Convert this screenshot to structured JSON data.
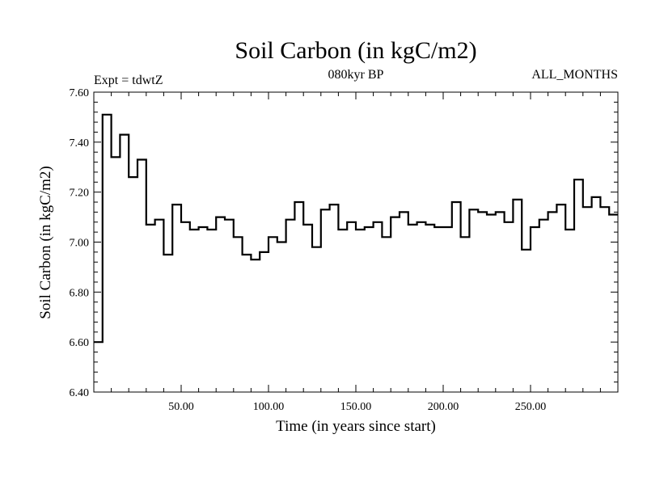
{
  "chart_data": {
    "type": "line",
    "style": "step",
    "title": "Soil Carbon (in kgC/m2)",
    "subtitle": "080kyr BP",
    "left_note": "Expt = tdwtZ",
    "right_note": "ALL_MONTHS",
    "xlabel": "Time (in years since start)",
    "ylabel": "Soil Carbon (in kgC/m2)",
    "xlim": [
      0,
      300
    ],
    "ylim": [
      6.4,
      7.6
    ],
    "x_ticks": [
      50,
      100,
      150,
      200,
      250
    ],
    "x_tick_labels": [
      "50.00",
      "100.00",
      "150.00",
      "200.00",
      "250.00"
    ],
    "y_ticks": [
      6.4,
      6.6,
      6.8,
      7.0,
      7.2,
      7.4,
      7.6
    ],
    "y_tick_labels": [
      "6.40",
      "6.60",
      "6.80",
      "7.00",
      "7.20",
      "7.40",
      "7.60"
    ],
    "series": [
      {
        "name": "Soil Carbon",
        "step_width": 5,
        "start_x": 0,
        "values": [
          6.6,
          7.51,
          7.34,
          7.43,
          7.26,
          7.33,
          7.07,
          7.09,
          6.95,
          7.15,
          7.08,
          7.05,
          7.06,
          7.05,
          7.1,
          7.09,
          7.02,
          6.95,
          6.93,
          6.96,
          7.02,
          7.0,
          7.09,
          7.16,
          7.07,
          6.98,
          7.13,
          7.15,
          7.05,
          7.08,
          7.05,
          7.06,
          7.08,
          7.02,
          7.1,
          7.12,
          7.07,
          7.08,
          7.07,
          7.06,
          7.06,
          7.16,
          7.02,
          7.13,
          7.12,
          7.11,
          7.12,
          7.08,
          7.17,
          6.97,
          7.06,
          7.09,
          7.12,
          7.15,
          7.05,
          7.25,
          7.14,
          7.18,
          7.14,
          7.11
        ]
      }
    ]
  }
}
